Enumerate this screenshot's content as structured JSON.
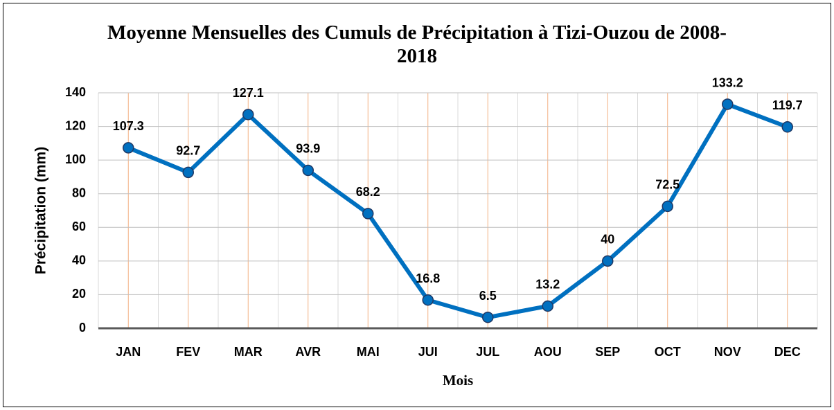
{
  "chart_data": {
    "type": "line",
    "title": "Moyenne Mensuelles des Cumuls de Précipitation à Tizi-Ouzou de 2008-2018",
    "x_label": "Mois",
    "y_label": "Précipitation (mm)",
    "categories": [
      "JAN",
      "FEV",
      "MAR",
      "AVR",
      "MAI",
      "JUI",
      "JUL",
      "AOU",
      "SEP",
      "OCT",
      "NOV",
      "DEC"
    ],
    "series": [
      {
        "name": "Précipitation",
        "color": "#0070c0",
        "values": [
          107.3,
          92.7,
          127.1,
          93.9,
          68.2,
          16.8,
          6.5,
          13.2,
          40,
          72.5,
          133.2,
          119.7
        ]
      }
    ],
    "ylim": [
      0,
      140
    ],
    "yticks": [
      0,
      20,
      40,
      60,
      80,
      100,
      120,
      140
    ],
    "grid": true
  }
}
